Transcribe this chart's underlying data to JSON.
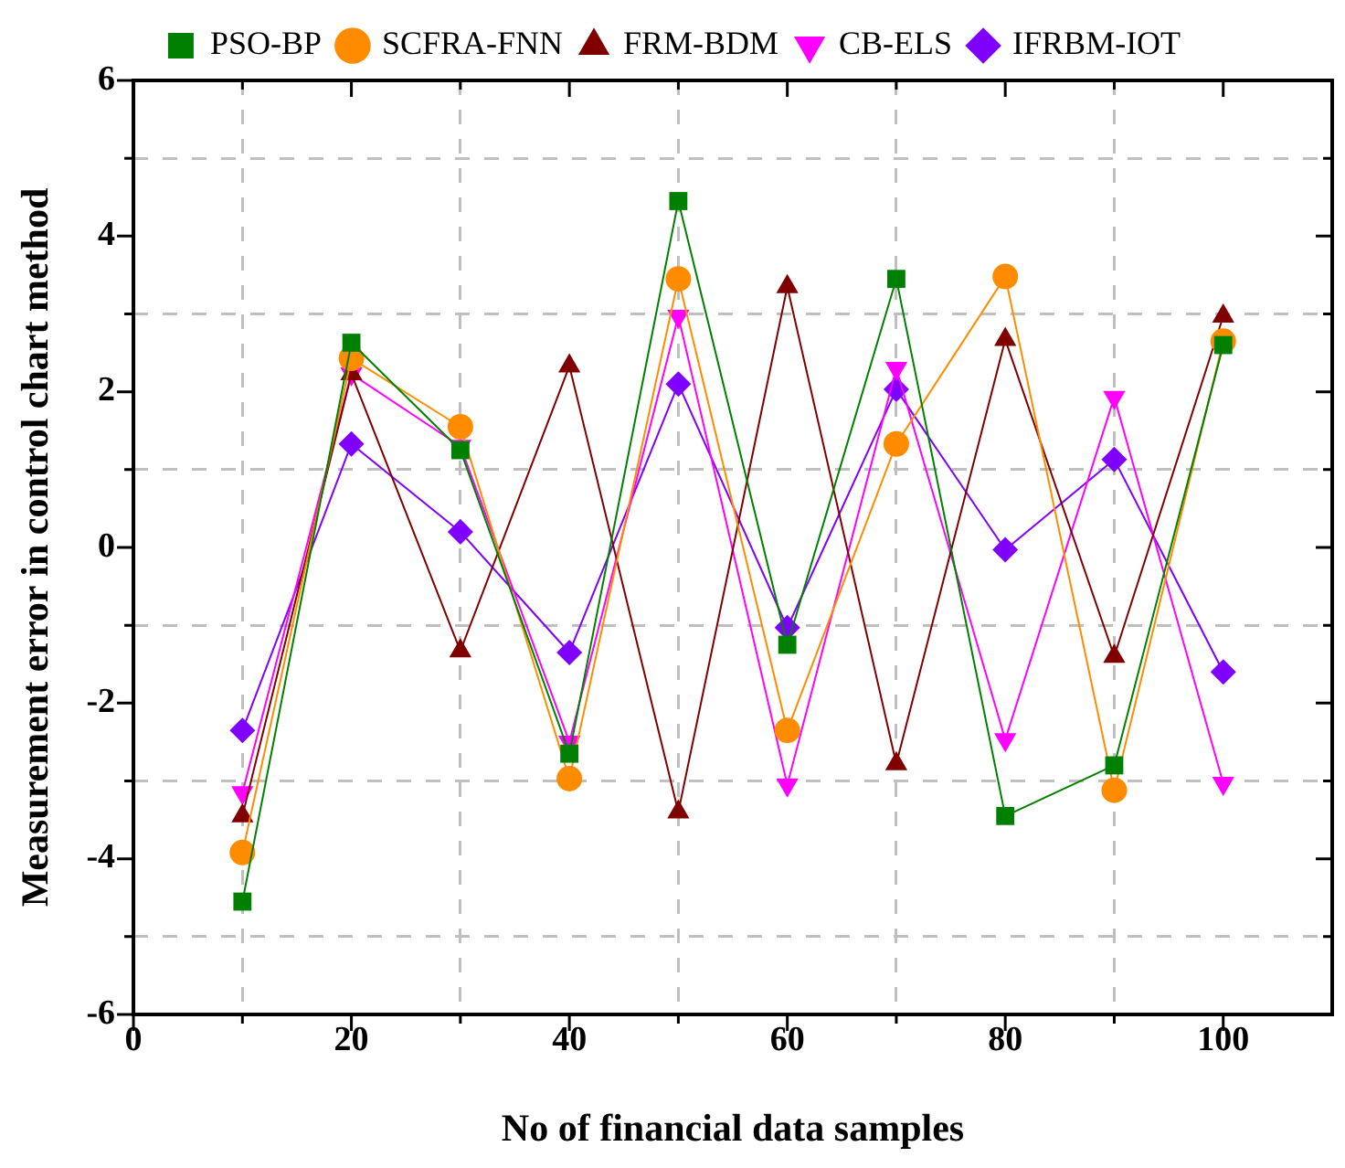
{
  "chart_data": {
    "type": "line",
    "xlabel": "No of financial data samples",
    "ylabel": "Measurement error in control chart method",
    "x": [
      10,
      20,
      30,
      40,
      50,
      60,
      70,
      80,
      90,
      100
    ],
    "xlim": [
      0,
      110
    ],
    "ylim": [
      -6,
      6
    ],
    "xticks": [
      0,
      {
        "value": 10,
        "label": null
      },
      20,
      {
        "value": 30,
        "label": null
      },
      40,
      {
        "value": 50,
        "label": null
      },
      60,
      {
        "value": 70,
        "label": null
      },
      80,
      {
        "value": 90,
        "label": null
      },
      100
    ],
    "yticks": [
      -6,
      {
        "value": -5,
        "label": null
      },
      -4,
      {
        "value": -3,
        "label": null
      },
      -2,
      {
        "value": -1,
        "label": null
      },
      0,
      {
        "value": 1,
        "label": null
      },
      2,
      {
        "value": 3,
        "label": null
      },
      4,
      {
        "value": 5,
        "label": null
      },
      6
    ],
    "grid": true,
    "legend": "top",
    "line_style": "solid",
    "series": [
      {
        "name": "PSO-BP",
        "color": "#008000",
        "marker": "square",
        "values": [
          -4.55,
          2.63,
          1.25,
          -2.65,
          4.45,
          -1.25,
          3.45,
          -3.45,
          -2.8,
          2.6
        ]
      },
      {
        "name": "SCFRA-FNN",
        "color": "#ff8c00",
        "marker": "circle",
        "values": [
          -3.92,
          2.43,
          1.55,
          -2.97,
          3.45,
          -2.35,
          1.33,
          3.48,
          -3.12,
          2.65
        ]
      },
      {
        "name": "FRM-BDM",
        "color": "#800000",
        "marker": "triangle",
        "values": [
          -3.45,
          2.23,
          -1.33,
          2.33,
          -3.4,
          3.35,
          -2.78,
          2.67,
          -1.4,
          2.97
        ]
      },
      {
        "name": "CB-ELS",
        "color": "#ff00ff",
        "marker": "triangle-down",
        "values": [
          -3.15,
          2.23,
          1.3,
          -2.5,
          2.97,
          -3.05,
          2.3,
          -2.47,
          1.93,
          -3.03
        ]
      },
      {
        "name": "IFRBM-IOT",
        "color": "#8000ff",
        "marker": "diamond",
        "values": [
          -2.35,
          1.33,
          0.2,
          -1.35,
          2.1,
          -1.03,
          2.03,
          -0.03,
          1.13,
          -1.6
        ]
      }
    ]
  }
}
